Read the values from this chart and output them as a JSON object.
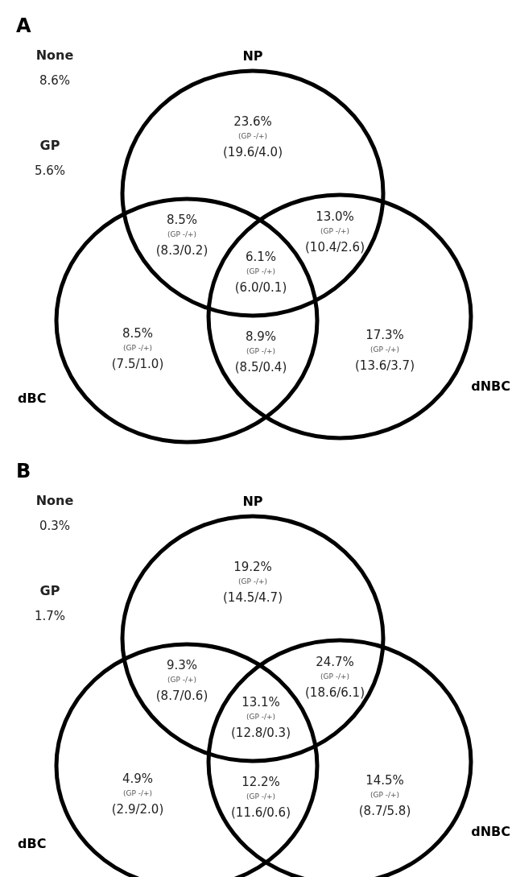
{
  "chart_data": [
    {
      "type": "other",
      "title": "A",
      "categories": [
        null,
        null,
        null,
        null,
        null,
        null,
        null
      ],
      "values": [
        23.6,
        8.5,
        13.0,
        6.1,
        8.5,
        8.9,
        17.3
      ],
      "value_labels": [
        "23.6%",
        "8.5%",
        "13.0%",
        "6.1%",
        "8.5%",
        "8.9%",
        "17.3%"
      ],
      "annotations": [
        "NP",
        "dBC",
        "dNBC",
        "None\n8.6%",
        "GP\n5.6%",
        "(GP -/+)\n(19.6/4.0)",
        "(GP -/+)\n(8.3/0.2)",
        "(GP -/+)\n(10.4/2.6)",
        "(GP -/+)\n(6.0/0.1)",
        "(GP -/+)\n(7.5/1.0)",
        "(GP -/+)\n(8.5/0.4)",
        "(GP -/+)\n(13.6/3.7)"
      ]
    },
    {
      "type": "other",
      "title": "B",
      "categories": [
        null,
        null,
        null,
        null,
        null,
        null,
        null
      ],
      "values": [
        19.2,
        9.3,
        24.7,
        13.1,
        4.9,
        12.2,
        14.5
      ],
      "value_labels": [
        "19.2%",
        "9.3%",
        "24.7%",
        "13.1%",
        "4.9%",
        "12.2%",
        "14.5%"
      ],
      "annotations": [
        "NP",
        "dBC",
        "dNBC",
        "None\n0.3%",
        "GP\n1.7%",
        "(GP -/+)\n(14.5/4.7)",
        "(GP -/+)\n(8.7/0.6)",
        "(GP -/+)\n(18.6/6.1)",
        "(GP -/+)\n(12.8/0.3)",
        "(GP -/+)\n(2.9/2.0)",
        "(GP -/+)\n(11.6/0.6)",
        "(GP -/+)\n(8.7/5.8)"
      ]
    }
  ]
}
